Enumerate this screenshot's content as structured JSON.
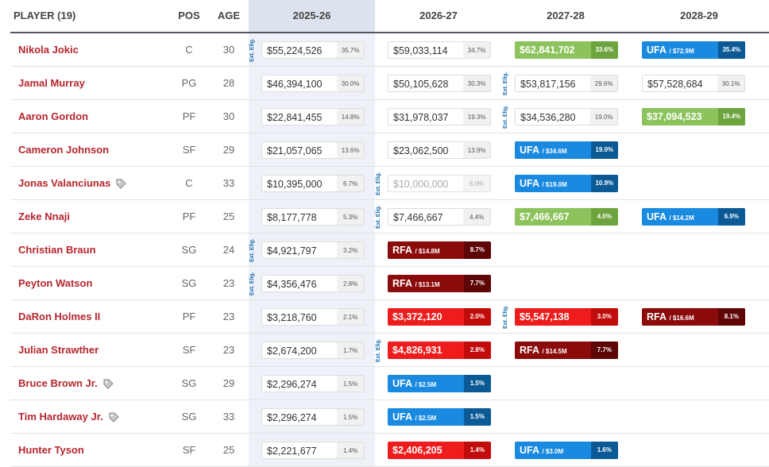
{
  "header": {
    "player": "PLAYER (19)",
    "pos": "POS",
    "age": "AGE",
    "seasons": [
      "2025-26",
      "2026-27",
      "2027-28",
      "2028-29"
    ]
  },
  "rows": [
    {
      "name": "Nikola Jokic",
      "pos": "C",
      "age": 30,
      "seasons": [
        {
          "kind": "guaranteed",
          "amount": "$55,224,526",
          "pct": "35.7%",
          "ext": "Ext. Elig."
        },
        {
          "kind": "guaranteed",
          "amount": "$59,033,114",
          "pct": "34.7%"
        },
        {
          "kind": "option",
          "amount": "$62,841,702",
          "pct": "33.6%"
        },
        {
          "kind": "ufa",
          "amount": "UFA",
          "detail": "/ $72.9M",
          "pct": "35.4%"
        }
      ]
    },
    {
      "name": "Jamal Murray",
      "pos": "PG",
      "age": 28,
      "seasons": [
        {
          "kind": "guaranteed",
          "amount": "$46,394,100",
          "pct": "30.0%"
        },
        {
          "kind": "guaranteed",
          "amount": "$50,105,628",
          "pct": "30.3%"
        },
        {
          "kind": "guaranteed",
          "amount": "$53,817,156",
          "pct": "29.6%",
          "ext": "Ext. Elig."
        },
        {
          "kind": "guaranteed",
          "amount": "$57,528,684",
          "pct": "30.1%"
        }
      ]
    },
    {
      "name": "Aaron Gordon",
      "pos": "PF",
      "age": 30,
      "seasons": [
        {
          "kind": "guaranteed",
          "amount": "$22,841,455",
          "pct": "14.8%"
        },
        {
          "kind": "guaranteed",
          "amount": "$31,978,037",
          "pct": "19.3%"
        },
        {
          "kind": "guaranteed",
          "amount": "$34,536,280",
          "pct": "19.0%",
          "ext": "Ext. Elig."
        },
        {
          "kind": "option",
          "amount": "$37,094,523",
          "pct": "19.4%"
        }
      ]
    },
    {
      "name": "Cameron Johnson",
      "pos": "SF",
      "age": 29,
      "seasons": [
        {
          "kind": "guaranteed",
          "amount": "$21,057,065",
          "pct": "13.6%"
        },
        {
          "kind": "guaranteed",
          "amount": "$23,062,500",
          "pct": "13.9%"
        },
        {
          "kind": "ufa",
          "amount": "UFA",
          "detail": "/ $34.6M",
          "pct": "19.0%"
        },
        null
      ]
    },
    {
      "name": "Jonas Valanciunas",
      "tag": true,
      "pos": "C",
      "age": 33,
      "seasons": [
        {
          "kind": "guaranteed",
          "amount": "$10,395,000",
          "pct": "6.7%"
        },
        {
          "kind": "faded",
          "amount": "$10,000,000",
          "pct": "6.0%",
          "ext": "Ext. Elig."
        },
        {
          "kind": "ufa",
          "amount": "UFA",
          "detail": "/ $19.0M",
          "pct": "10.9%"
        },
        null
      ]
    },
    {
      "name": "Zeke Nnaji",
      "pos": "PF",
      "age": 25,
      "seasons": [
        {
          "kind": "guaranteed",
          "amount": "$8,177,778",
          "pct": "5.3%"
        },
        {
          "kind": "guaranteed",
          "amount": "$7,466,667",
          "pct": "4.4%",
          "ext": "Ext. Elig."
        },
        {
          "kind": "option",
          "amount": "$7,466,667",
          "pct": "4.0%"
        },
        {
          "kind": "ufa",
          "amount": "UFA",
          "detail": "/ $14.2M",
          "pct": "6.9%"
        }
      ]
    },
    {
      "name": "Christian Braun",
      "pos": "SG",
      "age": 24,
      "seasons": [
        {
          "kind": "guaranteed",
          "amount": "$4,921,797",
          "pct": "3.2%",
          "ext": "Ext. Elig."
        },
        {
          "kind": "rfa",
          "amount": "RFA",
          "detail": "/ $14.8M",
          "pct": "8.7%"
        },
        null,
        null
      ]
    },
    {
      "name": "Peyton Watson",
      "pos": "SG",
      "age": 23,
      "seasons": [
        {
          "kind": "guaranteed",
          "amount": "$4,356,476",
          "pct": "2.8%",
          "ext": "Ext. Elig."
        },
        {
          "kind": "rfa",
          "amount": "RFA",
          "detail": "/ $13.1M",
          "pct": "7.7%"
        },
        null,
        null
      ]
    },
    {
      "name": "DaRon Holmes II",
      "pos": "PF",
      "age": 23,
      "seasons": [
        {
          "kind": "guaranteed",
          "amount": "$3,218,760",
          "pct": "2.1%"
        },
        {
          "kind": "nonguaranteed",
          "amount": "$3,372,120",
          "pct": "2.0%"
        },
        {
          "kind": "nonguaranteed",
          "amount": "$5,547,138",
          "pct": "3.0%",
          "ext": "Ext. Elig."
        },
        {
          "kind": "rfa",
          "amount": "RFA",
          "detail": "/ $16.6M",
          "pct": "8.1%"
        }
      ]
    },
    {
      "name": "Julian Strawther",
      "pos": "SF",
      "age": 23,
      "seasons": [
        {
          "kind": "guaranteed",
          "amount": "$2,674,200",
          "pct": "1.7%"
        },
        {
          "kind": "nonguaranteed",
          "amount": "$4,826,931",
          "pct": "2.8%",
          "ext": "Ext. Elig."
        },
        {
          "kind": "rfa",
          "amount": "RFA",
          "detail": "/ $14.5M",
          "pct": "7.7%"
        },
        null
      ]
    },
    {
      "name": "Bruce Brown Jr.",
      "tag": true,
      "pos": "SG",
      "age": 29,
      "seasons": [
        {
          "kind": "guaranteed",
          "amount": "$2,296,274",
          "pct": "1.5%"
        },
        {
          "kind": "ufa",
          "amount": "UFA",
          "detail": "/ $2.5M",
          "pct": "1.5%"
        },
        null,
        null
      ]
    },
    {
      "name": "Tim Hardaway Jr.",
      "tag": true,
      "pos": "SG",
      "age": 33,
      "seasons": [
        {
          "kind": "guaranteed",
          "amount": "$2,296,274",
          "pct": "1.5%"
        },
        {
          "kind": "ufa",
          "amount": "UFA",
          "detail": "/ $2.5M",
          "pct": "1.5%"
        },
        null,
        null
      ]
    },
    {
      "name": "Hunter Tyson",
      "pos": "SF",
      "age": 25,
      "seasons": [
        {
          "kind": "guaranteed",
          "amount": "$2,221,677",
          "pct": "1.4%"
        },
        {
          "kind": "nonguaranteed",
          "amount": "$2,406,205",
          "pct": "1.4%"
        },
        {
          "kind": "ufa",
          "amount": "UFA",
          "detail": "/ $3.0M",
          "pct": "1.6%"
        },
        null
      ]
    }
  ]
}
